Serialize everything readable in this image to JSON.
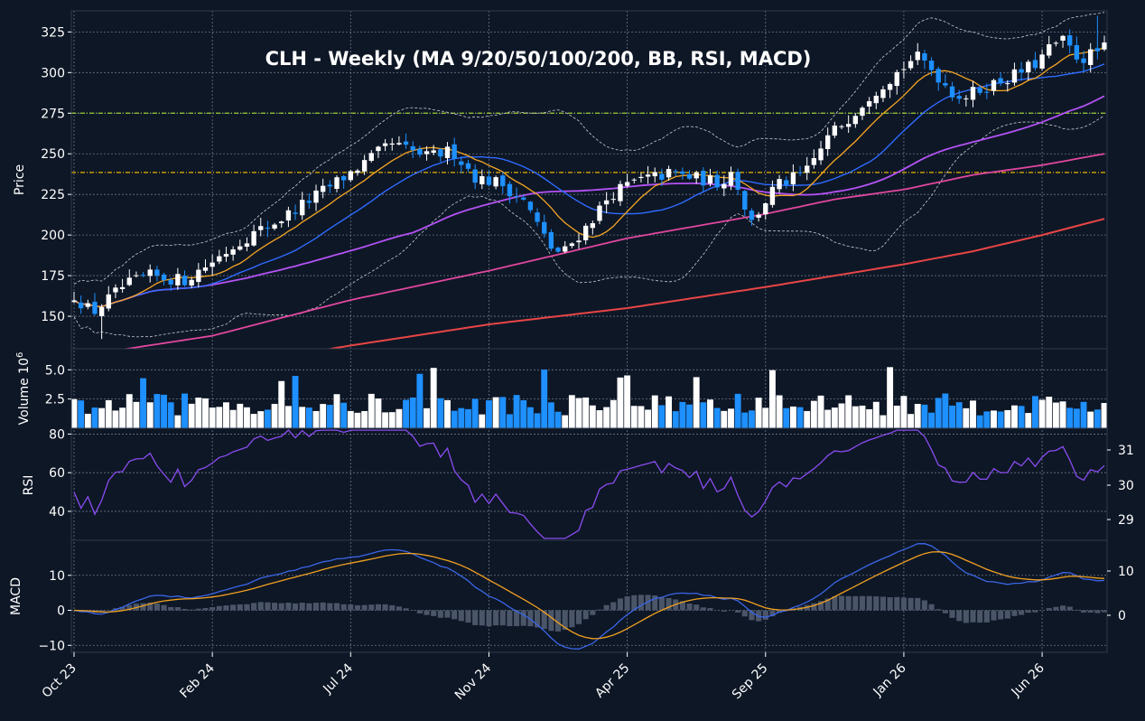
{
  "chart_data": {
    "type": "candlestick",
    "title": "CLH  -  Weekly  (MA 9/20/50/100/200, BB, RSI, MACD)",
    "theme": {
      "background": "#0e1726",
      "panel_border": "#2e3a4c",
      "grid": "#6b7687",
      "up": "#ffffff",
      "down": "#1e90ff",
      "ma9": "#f5a623",
      "ma20": "#2f6bff",
      "ma50": "#b452f5",
      "ma100": "#e0479e",
      "ma200": "#e84545",
      "bb": "#c9ccd4",
      "level_high": "#9acd32",
      "level_low": "#e5b400",
      "rsi": "#8a4cf0",
      "macd": "#3a66e8",
      "signal": "#f0a020",
      "hist": "#4a5568"
    },
    "x_tick_labels": [
      "Oct 23",
      "Feb 24",
      "Jul 24",
      "Nov 24",
      "Apr 25",
      "Sep 25",
      "Jan 26",
      "Jun 26"
    ],
    "x_tick_index": [
      0,
      20,
      40,
      60,
      80,
      100,
      120,
      140
    ],
    "weeks": 150,
    "price_panel": {
      "ylabel": "Price",
      "ylim": [
        130,
        338
      ],
      "yticks": [
        150,
        175,
        200,
        225,
        250,
        275,
        300,
        325
      ],
      "levels": [
        275,
        238.5
      ],
      "anchors": [
        [
          0,
          163
        ],
        [
          3,
          152
        ],
        [
          8,
          168
        ],
        [
          12,
          175
        ],
        [
          18,
          172
        ],
        [
          22,
          182
        ],
        [
          28,
          198
        ],
        [
          34,
          210
        ],
        [
          40,
          225
        ],
        [
          46,
          240
        ],
        [
          52,
          256
        ],
        [
          58,
          248
        ],
        [
          62,
          252
        ],
        [
          66,
          235
        ],
        [
          70,
          232
        ],
        [
          74,
          220
        ],
        [
          78,
          193
        ],
        [
          80,
          188
        ],
        [
          84,
          205
        ],
        [
          88,
          225
        ],
        [
          92,
          233
        ],
        [
          98,
          238
        ],
        [
          102,
          235
        ],
        [
          106,
          232
        ],
        [
          108,
          240
        ],
        [
          111,
          207
        ],
        [
          115,
          230
        ],
        [
          120,
          238
        ],
        [
          124,
          262
        ],
        [
          127,
          272
        ],
        [
          131,
          288
        ],
        [
          135,
          300
        ],
        [
          138,
          310
        ],
        [
          140,
          305
        ],
        [
          144,
          288
        ],
        [
          146,
          285
        ],
        [
          150,
          292
        ],
        [
          154,
          298
        ],
        [
          158,
          306
        ],
        [
          160,
          315
        ],
        [
          162,
          320
        ],
        [
          165,
          308
        ],
        [
          169,
          315
        ]
      ],
      "moving_average_anchors": {
        "ma100": [
          [
            0,
            125
          ],
          [
            20,
            138
          ],
          [
            40,
            160
          ],
          [
            60,
            178
          ],
          [
            80,
            198
          ],
          [
            100,
            213
          ],
          [
            110,
            222
          ],
          [
            120,
            228
          ],
          [
            130,
            237
          ],
          [
            140,
            243
          ],
          [
            149,
            250
          ]
        ],
        "ma200": [
          [
            0,
            110
          ],
          [
            20,
            118
          ],
          [
            40,
            132
          ],
          [
            60,
            145
          ],
          [
            80,
            155
          ],
          [
            100,
            168
          ],
          [
            120,
            182
          ],
          [
            130,
            190
          ],
          [
            140,
            200
          ],
          [
            149,
            210
          ]
        ]
      }
    },
    "volume_panel": {
      "ylabel": "Volume  10",
      "ylabel_exponent": "6",
      "ylim": [
        0,
        6.8
      ],
      "yticks": [
        2.5,
        5.0
      ],
      "ytick_labels": [
        "2.5",
        "5.0"
      ]
    },
    "rsi_panel": {
      "ylabel": "RSI",
      "ylim": [
        25,
        83
      ],
      "yticks": [
        40,
        60,
        80
      ],
      "right_ticks": [
        29,
        30,
        31
      ]
    },
    "macd_panel": {
      "ylabel": "MACD",
      "ylim": [
        -12,
        20
      ],
      "yticks": [
        -10,
        0,
        10
      ],
      "right_ticks": [
        0,
        10
      ]
    }
  }
}
